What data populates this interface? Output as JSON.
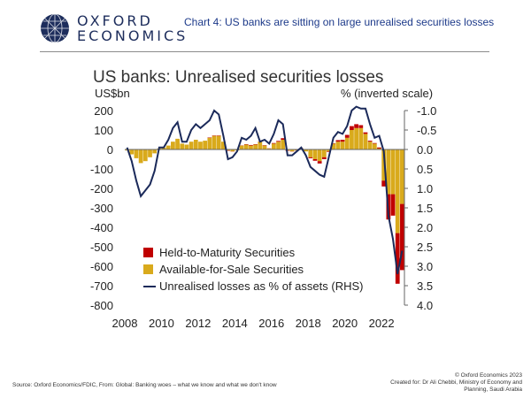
{
  "header": {
    "logo_line1": "OXFORD",
    "logo_line2": "ECONOMICS",
    "chart_caption": "Chart 4: US banks are sitting on large unrealised securities losses"
  },
  "footer": {
    "source": "Source: Oxford Economics/FDIC, From:   Global: Banking woes – what we know and what we don't know",
    "copyright": "© Oxford Economics 2023",
    "created_for_1": "Created for: Dr Ali Chebbi, Ministry of Economy and",
    "created_for_2": "Planning, Saudi Arabia"
  },
  "colors": {
    "htm": "#c00000",
    "afs": "#d9aa1c",
    "line": "#1b2a5a",
    "axis": "#666666",
    "logo": "#1d2d5c"
  },
  "chart_data": {
    "type": "bar",
    "title": "US banks: Unrealised securities losses",
    "ylabel": "US$bn",
    "y2label": "% (inverted scale)",
    "ylim": [
      -800,
      200
    ],
    "y2lim": [
      4.0,
      -1.0
    ],
    "y_ticks": [
      "200",
      "100",
      "0",
      "-100",
      "-200",
      "-300",
      "-400",
      "-500",
      "-600",
      "-700",
      "-800"
    ],
    "y2_ticks": [
      "-1.0",
      "-0.5",
      "0.0",
      "0.5",
      "1.0",
      "1.5",
      "2.0",
      "2.5",
      "3.0",
      "3.5",
      "4.0"
    ],
    "x_ticks": [
      "2008",
      "2010",
      "2012",
      "2014",
      "2016",
      "2018",
      "2020",
      "2022"
    ],
    "x_start": 2008.0,
    "x_end": 2023.25,
    "quarters": [
      "2008Q1",
      "2008Q2",
      "2008Q3",
      "2008Q4",
      "2009Q1",
      "2009Q2",
      "2009Q3",
      "2009Q4",
      "2010Q1",
      "2010Q2",
      "2010Q3",
      "2010Q4",
      "2011Q1",
      "2011Q2",
      "2011Q3",
      "2011Q4",
      "2012Q1",
      "2012Q2",
      "2012Q3",
      "2012Q4",
      "2013Q1",
      "2013Q2",
      "2013Q3",
      "2013Q4",
      "2014Q1",
      "2014Q2",
      "2014Q3",
      "2014Q4",
      "2015Q1",
      "2015Q2",
      "2015Q3",
      "2015Q4",
      "2016Q1",
      "2016Q2",
      "2016Q3",
      "2016Q4",
      "2017Q1",
      "2017Q2",
      "2017Q3",
      "2017Q4",
      "2018Q1",
      "2018Q2",
      "2018Q3",
      "2018Q4",
      "2019Q1",
      "2019Q2",
      "2019Q3",
      "2019Q4",
      "2020Q1",
      "2020Q2",
      "2020Q3",
      "2020Q4",
      "2021Q1",
      "2021Q2",
      "2021Q3",
      "2021Q4",
      "2022Q1",
      "2022Q2",
      "2022Q3",
      "2022Q4",
      "2023Q1"
    ],
    "series": [
      {
        "name": "Held-to-Maturity Securities",
        "values": [
          0,
          0,
          0,
          0,
          0,
          0,
          0,
          0,
          0,
          0,
          0,
          0,
          0,
          0,
          0,
          0,
          0,
          0,
          2,
          2,
          2,
          0,
          -2,
          -1,
          0,
          1,
          2,
          3,
          2,
          1,
          2,
          1,
          3,
          4,
          8,
          -2,
          -1,
          1,
          1,
          0,
          -5,
          -8,
          -12,
          -10,
          -3,
          2,
          8,
          10,
          15,
          20,
          20,
          15,
          8,
          5,
          3,
          -5,
          -30,
          -130,
          -110,
          -260,
          -340
        ]
      },
      {
        "name": "Available-for-Sale Securities",
        "values": [
          -5,
          -25,
          -45,
          -70,
          -60,
          -40,
          -20,
          5,
          10,
          20,
          40,
          55,
          30,
          25,
          40,
          50,
          40,
          45,
          60,
          70,
          70,
          40,
          -5,
          -10,
          -5,
          20,
          25,
          20,
          25,
          40,
          20,
          5,
          30,
          40,
          50,
          -5,
          -10,
          -5,
          5,
          -10,
          -40,
          -50,
          -60,
          -40,
          -10,
          30,
          40,
          40,
          60,
          100,
          110,
          110,
          80,
          40,
          30,
          10,
          -160,
          -230,
          -230,
          -430,
          -280
        ]
      },
      {
        "name": "Unrealised losses as % of assets (RHS)",
        "values": [
          -0.05,
          0.3,
          0.8,
          1.2,
          1.05,
          0.9,
          0.55,
          -0.05,
          -0.05,
          -0.25,
          -0.55,
          -0.7,
          -0.2,
          -0.2,
          -0.5,
          -0.65,
          -0.55,
          -0.65,
          -0.75,
          -1.0,
          -0.9,
          -0.35,
          0.25,
          0.2,
          0.05,
          -0.3,
          -0.25,
          -0.35,
          -0.55,
          -0.2,
          -0.25,
          -0.15,
          -0.4,
          -0.75,
          -0.65,
          0.15,
          0.15,
          0.05,
          -0.05,
          0.15,
          0.45,
          0.55,
          0.65,
          0.7,
          0.2,
          -0.3,
          -0.45,
          -0.4,
          -0.6,
          -1.0,
          -1.1,
          -1.05,
          -1.05,
          -0.65,
          -0.3,
          -0.35,
          0.05,
          1.7,
          2.3,
          3.2,
          2.6
        ]
      }
    ]
  }
}
